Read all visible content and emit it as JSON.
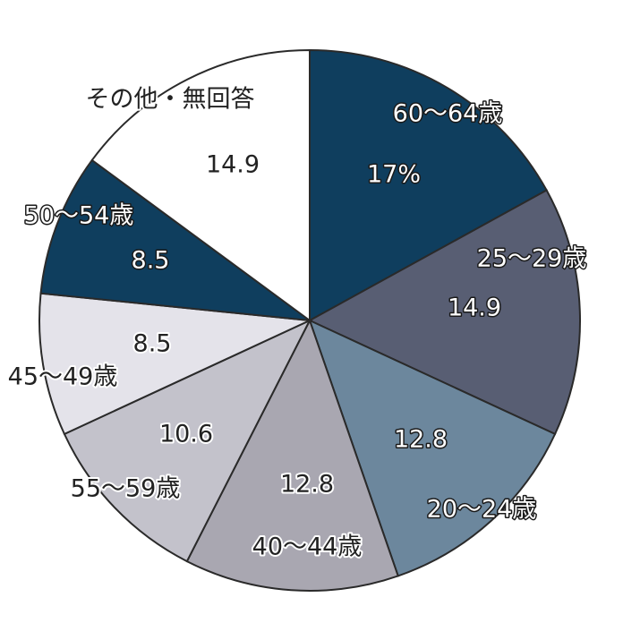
{
  "chart_data": {
    "type": "pie",
    "start_angle_deg": 0,
    "direction": "clockwise",
    "slices": [
      {
        "category": "60～64歳",
        "value": 17,
        "value_label": "17%",
        "color": "#0f3e5e"
      },
      {
        "category": "25～29歳",
        "value": 14.9,
        "value_label": "14.9",
        "color": "#585e73"
      },
      {
        "category": "20～24歳",
        "value": 12.8,
        "value_label": "12.8",
        "color": "#6c879d"
      },
      {
        "category": "40～44歳",
        "value": 12.8,
        "value_label": "12.8",
        "color": "#a9a7b1"
      },
      {
        "category": "55～59歳",
        "value": 10.6,
        "value_label": "10.6",
        "color": "#c3c2cb"
      },
      {
        "category": "45～49歳",
        "value": 8.5,
        "value_label": "8.5",
        "color": "#e4e3ea"
      },
      {
        "category": "50～54歳",
        "value": 8.5,
        "value_label": "8.5",
        "color": "#0f3e5e"
      },
      {
        "category": "その他・無回答",
        "value": 14.9,
        "value_label": "14.9",
        "color": "#ffffff"
      }
    ]
  }
}
